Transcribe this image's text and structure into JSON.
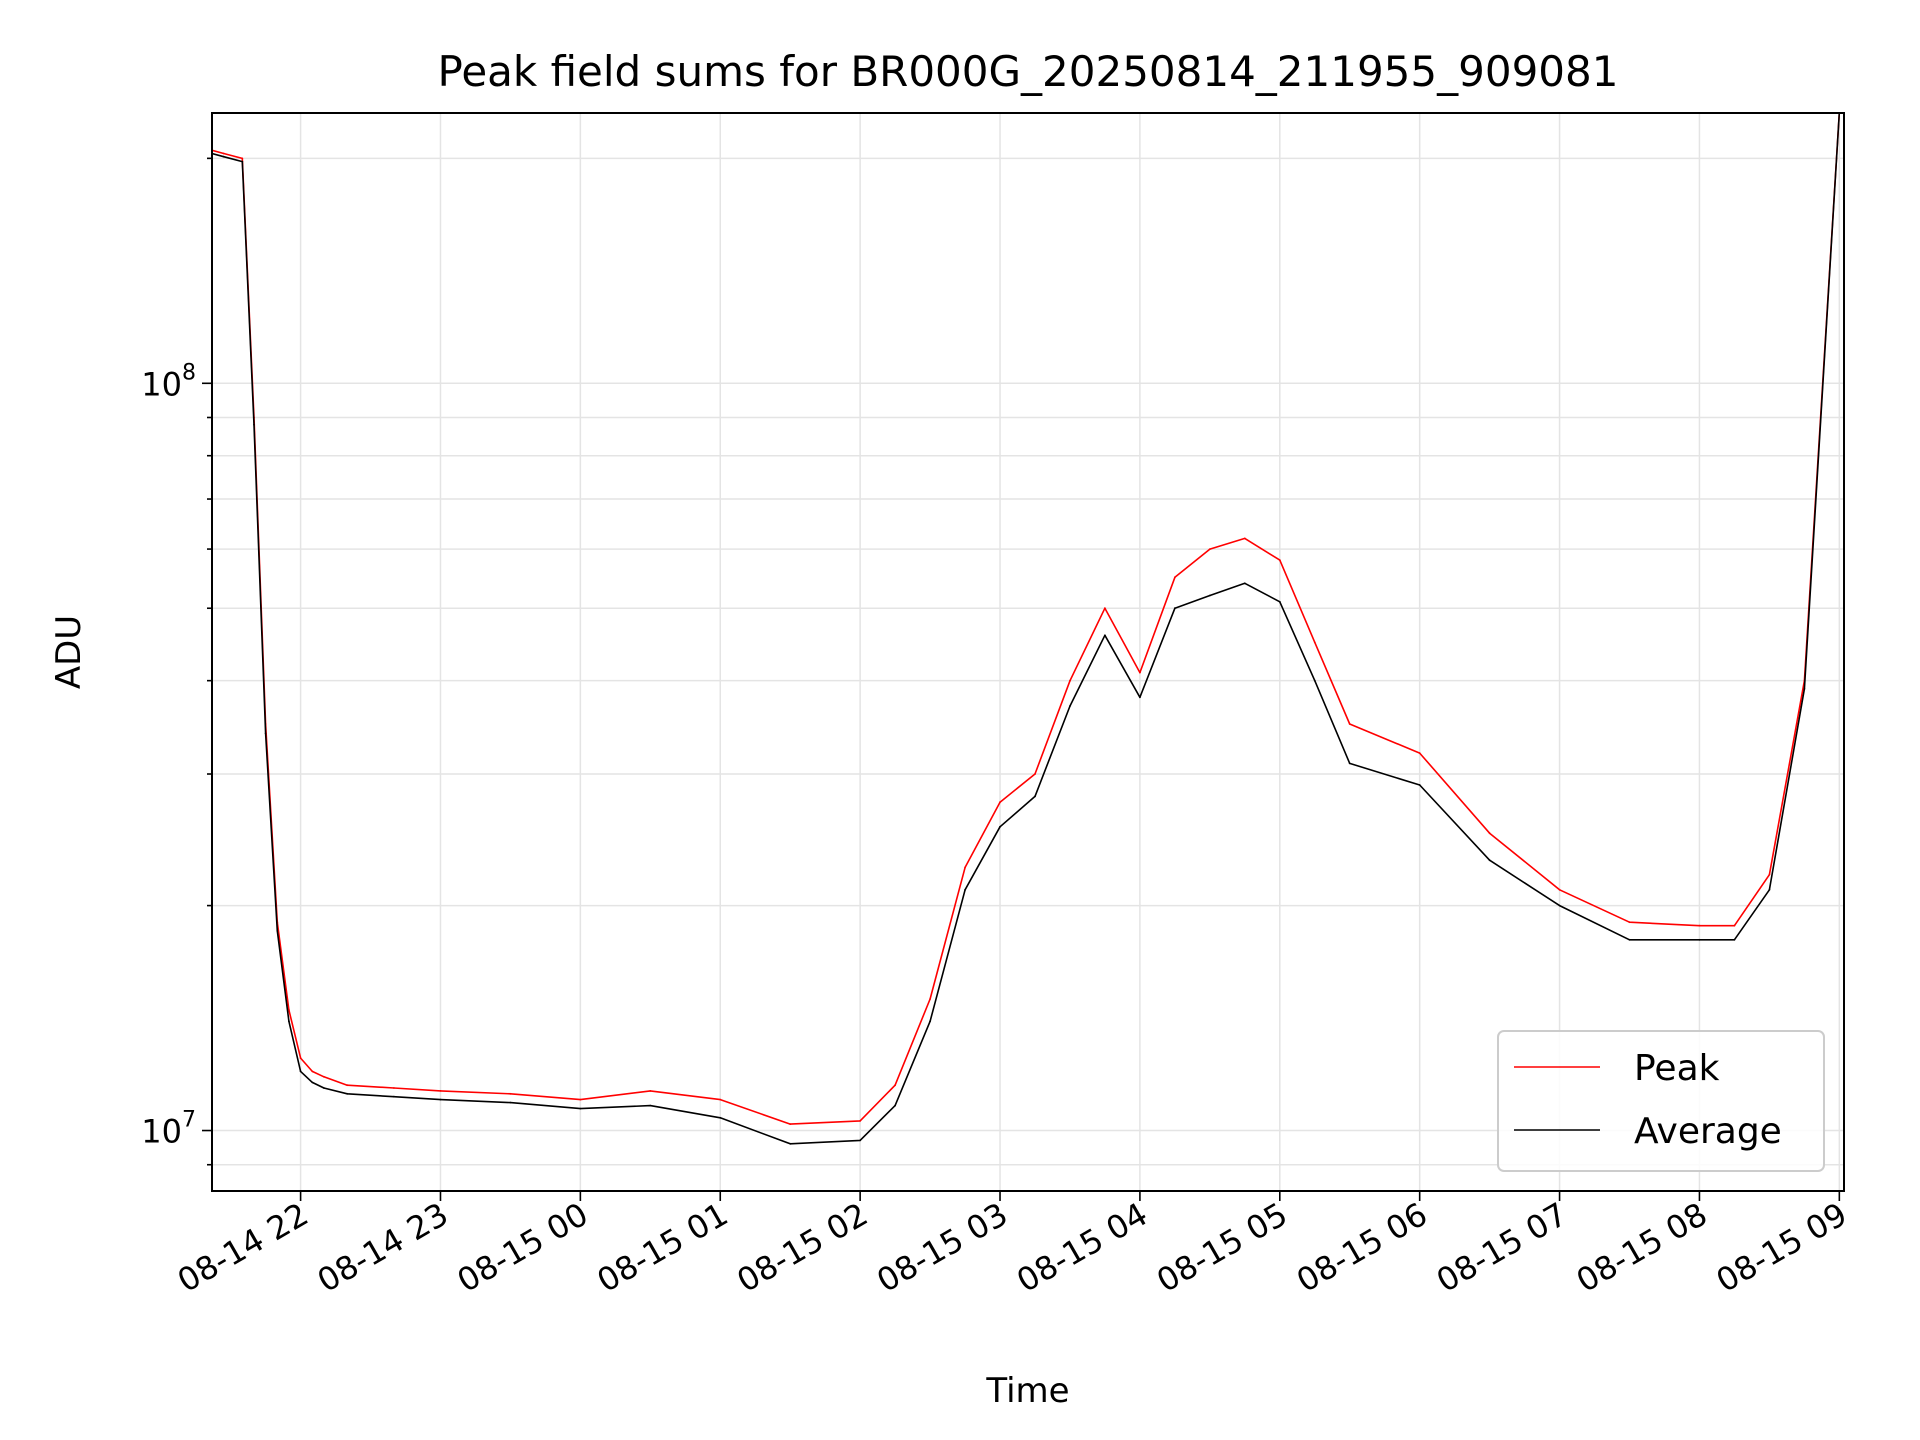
{
  "chart_data": {
    "type": "line",
    "title": "Peak field sums for BR000G_20250814_211955_909081",
    "xlabel": "Time",
    "ylabel": "ADU",
    "y_scale": "log",
    "ylim": [
      8300000,
      230000000
    ],
    "x_range": [
      "2025-08-14 21:22",
      "2025-08-15 09:02"
    ],
    "x_tick_labels": [
      "08-14 22",
      "08-14 23",
      "08-15 00",
      "08-15 01",
      "08-15 02",
      "08-15 03",
      "08-15 04",
      "08-15 05",
      "08-15 06",
      "08-15 07",
      "08-15 08",
      "08-15 09"
    ],
    "x_tick_times": [
      "2025-08-14 22:00",
      "2025-08-14 23:00",
      "2025-08-15 00:00",
      "2025-08-15 01:00",
      "2025-08-15 02:00",
      "2025-08-15 03:00",
      "2025-08-15 04:00",
      "2025-08-15 05:00",
      "2025-08-15 06:00",
      "2025-08-15 07:00",
      "2025-08-15 08:00",
      "2025-08-15 09:00"
    ],
    "y_major_ticks": [
      {
        "value": 10000000,
        "base": "10",
        "exp": "7"
      },
      {
        "value": 100000000,
        "base": "10",
        "exp": "8"
      }
    ],
    "grid": true,
    "legend_position": "lower right",
    "series": [
      {
        "name": "Peak",
        "color": "#ff0000",
        "x": [
          "2025-08-14 21:22",
          "2025-08-14 21:27",
          "2025-08-14 21:35",
          "2025-08-14 21:40",
          "2025-08-14 21:45",
          "2025-08-14 21:50",
          "2025-08-14 21:55",
          "2025-08-14 22:00",
          "2025-08-14 22:05",
          "2025-08-14 22:10",
          "2025-08-14 22:20",
          "2025-08-14 22:40",
          "2025-08-14 23:00",
          "2025-08-14 23:30",
          "2025-08-15 00:00",
          "2025-08-15 00:30",
          "2025-08-15 01:00",
          "2025-08-15 01:30",
          "2025-08-15 02:00",
          "2025-08-15 02:15",
          "2025-08-15 02:30",
          "2025-08-15 02:45",
          "2025-08-15 03:00",
          "2025-08-15 03:15",
          "2025-08-15 03:30",
          "2025-08-15 03:45",
          "2025-08-15 04:00",
          "2025-08-15 04:15",
          "2025-08-15 04:30",
          "2025-08-15 04:45",
          "2025-08-15 05:00",
          "2025-08-15 05:15",
          "2025-08-15 05:30",
          "2025-08-15 06:00",
          "2025-08-15 06:30",
          "2025-08-15 07:00",
          "2025-08-15 07:30",
          "2025-08-15 08:00",
          "2025-08-15 08:15",
          "2025-08-15 08:30",
          "2025-08-15 08:45",
          "2025-08-15 09:00"
        ],
        "y": [
          205000000,
          203000000,
          200000000,
          90000000,
          35000000,
          19000000,
          14500000,
          12500000,
          12000000,
          11800000,
          11500000,
          11400000,
          11300000,
          11200000,
          11000000,
          11300000,
          11000000,
          10200000,
          10300000,
          11500000,
          15000000,
          22500000,
          27500000,
          30000000,
          40000000,
          50000000,
          41000000,
          55000000,
          60000000,
          62000000,
          58000000,
          45000000,
          35000000,
          32000000,
          25000000,
          21000000,
          19000000,
          18800000,
          18800000,
          22000000,
          40000000,
          230000000
        ]
      },
      {
        "name": "Average",
        "color": "#000000",
        "x": [
          "2025-08-14 21:22",
          "2025-08-14 21:27",
          "2025-08-14 21:35",
          "2025-08-14 21:40",
          "2025-08-14 21:45",
          "2025-08-14 21:50",
          "2025-08-14 21:55",
          "2025-08-14 22:00",
          "2025-08-14 22:05",
          "2025-08-14 22:10",
          "2025-08-14 22:20",
          "2025-08-14 22:40",
          "2025-08-14 23:00",
          "2025-08-14 23:30",
          "2025-08-15 00:00",
          "2025-08-15 00:30",
          "2025-08-15 01:00",
          "2025-08-15 01:30",
          "2025-08-15 02:00",
          "2025-08-15 02:15",
          "2025-08-15 02:30",
          "2025-08-15 02:45",
          "2025-08-15 03:00",
          "2025-08-15 03:15",
          "2025-08-15 03:30",
          "2025-08-15 03:45",
          "2025-08-15 04:00",
          "2025-08-15 04:15",
          "2025-08-15 04:30",
          "2025-08-15 04:45",
          "2025-08-15 05:00",
          "2025-08-15 05:15",
          "2025-08-15 05:30",
          "2025-08-15 06:00",
          "2025-08-15 06:30",
          "2025-08-15 07:00",
          "2025-08-15 07:30",
          "2025-08-15 08:00",
          "2025-08-15 08:15",
          "2025-08-15 08:30",
          "2025-08-15 08:45",
          "2025-08-15 09:00"
        ],
        "y": [
          203000000,
          201000000,
          198000000,
          88000000,
          34000000,
          18500000,
          14000000,
          12000000,
          11600000,
          11400000,
          11200000,
          11100000,
          11000000,
          10900000,
          10700000,
          10800000,
          10400000,
          9600000,
          9700000,
          10800000,
          14000000,
          21000000,
          25500000,
          28000000,
          37000000,
          46000000,
          38000000,
          50000000,
          52000000,
          54000000,
          51000000,
          40000000,
          31000000,
          29000000,
          23000000,
          20000000,
          18000000,
          18000000,
          18000000,
          21000000,
          39000000,
          230000000
        ]
      }
    ]
  }
}
